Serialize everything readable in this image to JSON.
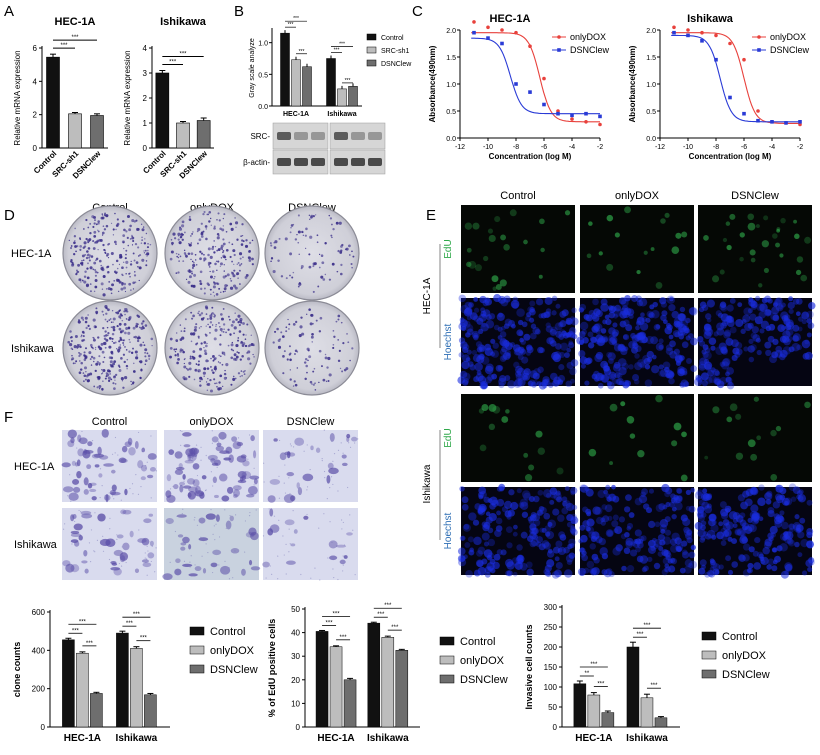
{
  "panel_letters": {
    "A": "A",
    "B": "B",
    "C": "C",
    "D": "D",
    "E": "E",
    "F": "F"
  },
  "colors": {
    "control": "#111111",
    "mid": "#bdbdbd",
    "low": "#6e6e6e",
    "red": "#e8413c",
    "blue": "#2a3bd6",
    "green": "#2fa84a",
    "hoechst_text": "#2f6fb5"
  },
  "panel_a": {
    "charts": [
      {
        "title": "HEC-1A",
        "ylabel": "Relative mRNA expression",
        "ylim": [
          0,
          6
        ],
        "yticks": [
          0,
          2,
          4,
          6
        ],
        "categories": [
          "Control",
          "SRC-sh1",
          "DSNClew"
        ],
        "values": [
          5.45,
          2.05,
          1.95
        ],
        "errors": [
          0.18,
          0.08,
          0.1
        ],
        "sig": [
          "***",
          "***"
        ]
      },
      {
        "title": "Ishikawa",
        "ylabel": "Relative mRNA expression",
        "ylim": [
          0,
          4
        ],
        "yticks": [
          0,
          1,
          2,
          3,
          4
        ],
        "categories": [
          "Control",
          "SRC-sh1",
          "DSNClew"
        ],
        "values": [
          3.0,
          1.0,
          1.1
        ],
        "errors": [
          0.1,
          0.06,
          0.1
        ],
        "sig": [
          "***",
          "***"
        ]
      }
    ]
  },
  "panel_b": {
    "ylabel": "Gray scale analyze",
    "ylim": [
      0,
      1.2
    ],
    "yticks": [
      "0.0",
      "0.5",
      "1.0"
    ],
    "categories": [
      "HEC-1A",
      "Ishikawa"
    ],
    "series": [
      {
        "name": "Control",
        "values": [
          1.15,
          0.75
        ]
      },
      {
        "name": "SRC-sh1",
        "values": [
          0.73,
          0.27
        ]
      },
      {
        "name": "DSNClew",
        "values": [
          0.62,
          0.31
        ]
      }
    ],
    "sig": "***",
    "blot_labels": [
      "SRC-",
      "β-actin-"
    ]
  },
  "panel_c": {
    "xlabel": "Concentration (log M)",
    "ylabel": "Absorbance(490nm)",
    "xticks": [
      -12,
      -10,
      -8,
      -6,
      -4,
      -2
    ],
    "yticks": [
      0.0,
      0.5,
      1.0,
      1.5,
      2.0
    ],
    "xlim": [
      -12,
      -2
    ],
    "ylim": [
      0,
      2.0
    ],
    "legend": [
      "onlyDOX",
      "DSNClew"
    ],
    "charts": [
      {
        "title": "HEC-1A",
        "onlyDOX": {
          "x": [
            -11,
            -10,
            -9,
            -8,
            -7,
            -6,
            -5,
            -4,
            -3,
            -2
          ],
          "y": [
            2.15,
            2.05,
            2.0,
            1.95,
            1.7,
            1.1,
            0.5,
            0.35,
            0.3,
            0.25
          ]
        },
        "DSNClew": {
          "x": [
            -11,
            -10,
            -9,
            -8,
            -7,
            -6,
            -5,
            -4,
            -3,
            -2
          ],
          "y": [
            1.95,
            1.85,
            1.75,
            1.0,
            0.85,
            0.62,
            0.45,
            0.42,
            0.45,
            0.4
          ]
        }
      },
      {
        "title": "Ishikawa",
        "onlyDOX": {
          "x": [
            -11,
            -10,
            -9,
            -8,
            -7,
            -6,
            -5,
            -4,
            -3,
            -2
          ],
          "y": [
            2.05,
            2.0,
            1.95,
            1.9,
            1.75,
            1.45,
            0.5,
            0.3,
            0.28,
            0.25
          ]
        },
        "DSNClew": {
          "x": [
            -11,
            -10,
            -9,
            -8,
            -7,
            -6,
            -5,
            -4,
            -3,
            -2
          ],
          "y": [
            1.95,
            1.9,
            1.8,
            1.45,
            0.75,
            0.45,
            0.32,
            0.3,
            0.28,
            0.3
          ]
        }
      }
    ]
  },
  "panel_d": {
    "columns": [
      "Control",
      "onlyDOX",
      "DSNClew"
    ],
    "rows": [
      "HEC-1A",
      "Ishikawa"
    ]
  },
  "panel_e": {
    "columns": [
      "Control",
      "onlyDOX",
      "DSNClew"
    ],
    "cell_lines": [
      "HEC-1A",
      "Ishikawa"
    ],
    "stains": [
      "EdU",
      "Hoechst"
    ]
  },
  "panel_f": {
    "columns": [
      "Control",
      "onlyDOX",
      "DSNClew"
    ],
    "rows": [
      "HEC-1A",
      "Ishikawa"
    ]
  },
  "chart_data": [
    {
      "type": "bar",
      "title": "HEC-1A",
      "ylabel": "Relative mRNA expression",
      "categories": [
        "Control",
        "SRC-sh1",
        "DSNClew"
      ],
      "values": [
        5.45,
        2.05,
        1.95
      ],
      "ylim": [
        0,
        6
      ]
    },
    {
      "type": "bar",
      "title": "Ishikawa",
      "ylabel": "Relative mRNA expression",
      "categories": [
        "Control",
        "SRC-sh1",
        "DSNClew"
      ],
      "values": [
        3.0,
        1.0,
        1.1
      ],
      "ylim": [
        0,
        4
      ]
    },
    {
      "type": "bar",
      "ylabel": "Gray scale analyze",
      "categories": [
        "HEC-1A",
        "Ishikawa"
      ],
      "series": [
        {
          "name": "Control",
          "values": [
            1.15,
            0.75
          ]
        },
        {
          "name": "SRC-sh1",
          "values": [
            0.73,
            0.27
          ]
        },
        {
          "name": "DSNClew",
          "values": [
            0.62,
            0.31
          ]
        }
      ],
      "ylim": [
        0,
        1.2
      ]
    },
    {
      "type": "bar",
      "ylabel": "clone counts",
      "ylim": [
        0,
        600
      ],
      "yticks": [
        0,
        200,
        400,
        600
      ],
      "categories": [
        "HEC-1A",
        "Ishikawa"
      ],
      "series": [
        {
          "name": "Control",
          "values": [
            455,
            490
          ]
        },
        {
          "name": "onlyDOX",
          "values": [
            385,
            410
          ]
        },
        {
          "name": "DSNClew",
          "values": [
            175,
            168
          ]
        }
      ],
      "errors": [
        [
          8,
          10
        ],
        [
          7,
          9
        ],
        [
          6,
          7
        ]
      ],
      "sig": [
        "***",
        "***",
        "***"
      ],
      "legend": "right"
    },
    {
      "type": "bar",
      "ylabel": "% of EdU positive cells",
      "ylim": [
        0,
        50
      ],
      "yticks": [
        0,
        10,
        20,
        30,
        40,
        50
      ],
      "categories": [
        "HEC-1A",
        "Ishikawa"
      ],
      "series": [
        {
          "name": "Control",
          "values": [
            40.5,
            44.0
          ]
        },
        {
          "name": "onlyDOX",
          "values": [
            34.0,
            38.0
          ]
        },
        {
          "name": "DSNClew",
          "values": [
            20.0,
            32.5
          ]
        }
      ],
      "errors": [
        [
          0.4,
          0.4
        ],
        [
          0.4,
          0.5
        ],
        [
          0.6,
          0.4
        ]
      ],
      "sig": [
        "***",
        "***",
        "***"
      ],
      "legend": "right"
    },
    {
      "type": "bar",
      "ylabel": "Invasive cell counts",
      "ylim": [
        0,
        300
      ],
      "yticks": [
        0,
        50,
        100,
        150,
        200,
        250,
        300
      ],
      "categories": [
        "HEC-1A",
        "Ishikawa"
      ],
      "series": [
        {
          "name": "Control",
          "values": [
            108,
            200
          ]
        },
        {
          "name": "onlyDOX",
          "values": [
            80,
            73
          ]
        },
        {
          "name": "DSNClew",
          "values": [
            36,
            23
          ]
        }
      ],
      "errors": [
        [
          7,
          12
        ],
        [
          6,
          9
        ],
        [
          4,
          3
        ]
      ],
      "sig": [
        "**",
        "***",
        "***"
      ],
      "legend": "right"
    }
  ]
}
